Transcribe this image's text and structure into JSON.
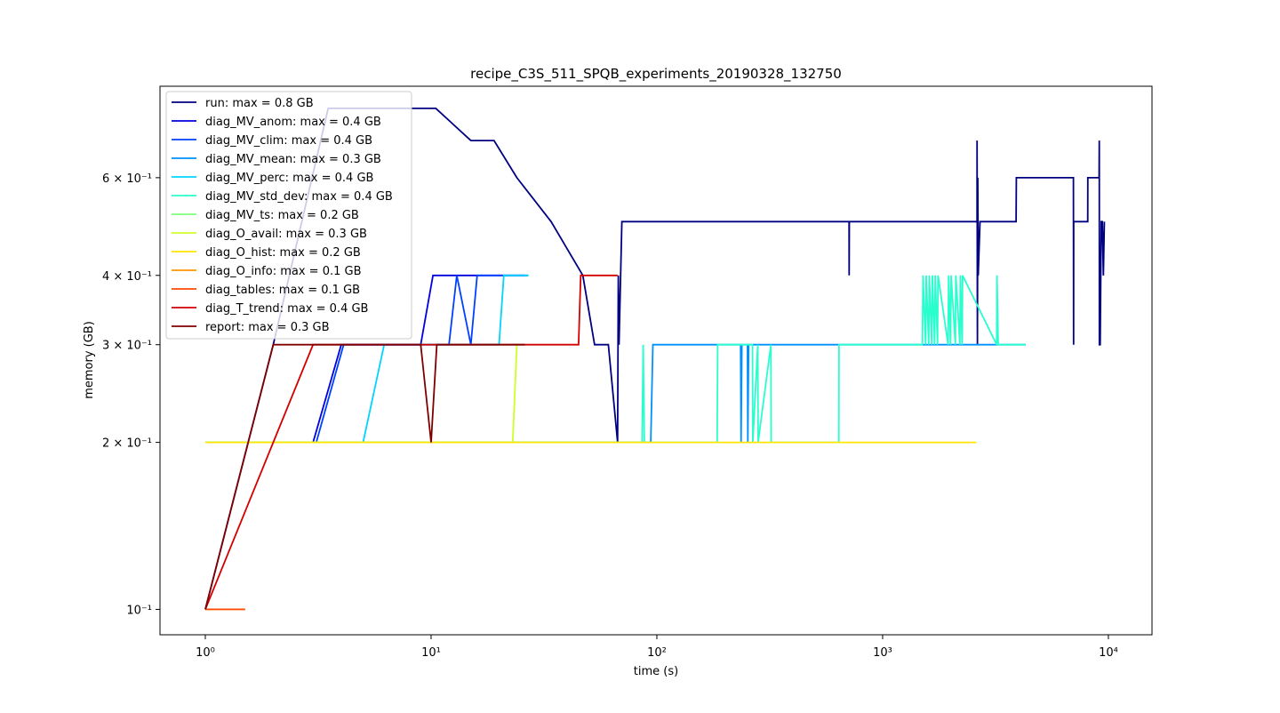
{
  "chart_data": {
    "type": "line",
    "title": "recipe_C3S_511_SPQB_experiments_20190328_132750",
    "x_label": "time (s)",
    "y_label": "memory (GB)",
    "xscale": "log",
    "yscale": "log",
    "legend": "upper left",
    "xlim": [
      0.63,
      15600
    ],
    "ylim": [
      0.09,
      0.877
    ],
    "xticks": [
      {
        "value": 1,
        "label": "10⁰"
      },
      {
        "value": 10,
        "label": "10¹"
      },
      {
        "value": 100,
        "label": "10²"
      },
      {
        "value": 1000,
        "label": "10³"
      },
      {
        "value": 10000,
        "label": "10⁴"
      }
    ],
    "yticks": [
      {
        "value": 0.1,
        "label": "10⁻¹"
      },
      {
        "value": 0.2,
        "label": "2 × 10⁻¹"
      },
      {
        "value": 0.3,
        "label": "3 × 10⁻¹"
      },
      {
        "value": 0.4,
        "label": "4 × 10⁻¹"
      },
      {
        "value": 0.6,
        "label": "6 × 10⁻¹"
      }
    ],
    "series": [
      {
        "name": "run: max = 0.8 GB",
        "color": "#000080",
        "x": [
          1,
          2,
          3.5,
          10.5,
          15,
          19,
          24,
          34,
          47,
          53,
          61,
          67,
          67.5,
          68,
          70,
          710,
          711,
          712,
          2620,
          2621,
          2630,
          2640,
          2650,
          2700,
          2710,
          3900,
          3910,
          7000,
          7010,
          7020,
          8100,
          8110,
          9100,
          9110,
          9120,
          9200,
          9300,
          9400,
          9500,
          9600
        ],
        "values": [
          0.1,
          0.3,
          0.8,
          0.8,
          0.7,
          0.7,
          0.6,
          0.5,
          0.4,
          0.3,
          0.3,
          0.2,
          0.4,
          0.3,
          0.5,
          0.5,
          0.4,
          0.5,
          0.5,
          0.7,
          0.3,
          0.6,
          0.4,
          0.5,
          0.5,
          0.5,
          0.6,
          0.6,
          0.3,
          0.5,
          0.5,
          0.6,
          0.6,
          0.7,
          0.3,
          0.3,
          0.5,
          0.5,
          0.4,
          0.5
        ]
      },
      {
        "name": "diag_MV_anom: max = 0.4 GB",
        "color": "#0000e0",
        "x": [
          3,
          4,
          9,
          10.2,
          26
        ],
        "values": [
          0.2,
          0.3,
          0.3,
          0.4,
          0.4
        ]
      },
      {
        "name": "diag_MV_clim: max = 0.4 GB",
        "color": "#0040ff",
        "x": [
          3.1,
          4.1,
          12,
          13,
          15,
          16,
          27
        ],
        "values": [
          0.2,
          0.3,
          0.3,
          0.4,
          0.3,
          0.4,
          0.4
        ]
      },
      {
        "name": "diag_MV_mean: max = 0.3 GB",
        "color": "#0090ff",
        "x": [
          1,
          94,
          96,
          235,
          236,
          238,
          252,
          253,
          255,
          4300
        ],
        "values": [
          0.2,
          0.2,
          0.3,
          0.3,
          0.2,
          0.3,
          0.3,
          0.2,
          0.3,
          0.3
        ]
      },
      {
        "name": "diag_MV_perc: max = 0.4 GB",
        "color": "#00d4ff",
        "x": [
          1,
          5,
          6.2,
          20,
          21,
          27
        ],
        "values": [
          0.2,
          0.2,
          0.3,
          0.3,
          0.4,
          0.4
        ]
      },
      {
        "name": "diag_MV_std_dev: max = 0.4 GB",
        "color": "#29ffce",
        "x": [
          1,
          86,
          87,
          88,
          185,
          186,
          188,
          265,
          266,
          280,
          281,
          320,
          321,
          640,
          641,
          1500,
          1510,
          1550,
          1560,
          1600,
          1610,
          1650,
          1660,
          1700,
          1710,
          1750,
          1760,
          1950,
          1960,
          2000,
          2010,
          2100,
          2110,
          2200,
          2210,
          2250,
          2260,
          3200,
          3210,
          3250,
          3260,
          4300
        ],
        "values": [
          0.2,
          0.2,
          0.3,
          0.2,
          0.2,
          0.3,
          0.3,
          0.3,
          0.2,
          0.3,
          0.2,
          0.3,
          0.2,
          0.2,
          0.3,
          0.3,
          0.4,
          0.3,
          0.4,
          0.3,
          0.4,
          0.3,
          0.4,
          0.3,
          0.4,
          0.3,
          0.4,
          0.3,
          0.4,
          0.3,
          0.4,
          0.3,
          0.4,
          0.3,
          0.4,
          0.3,
          0.4,
          0.3,
          0.4,
          0.3,
          0.3,
          0.3
        ]
      },
      {
        "name": "diag_MV_ts: max = 0.2 GB",
        "color": "#7dff7a",
        "x": [
          1,
          87
        ],
        "values": [
          0.2,
          0.2
        ]
      },
      {
        "name": "diag_O_avail: max = 0.3 GB",
        "color": "#ceff29",
        "x": [
          1,
          23,
          24,
          25
        ],
        "values": [
          0.2,
          0.2,
          0.3,
          0.3
        ]
      },
      {
        "name": "diag_O_hist: max = 0.2 GB",
        "color": "#ffe500",
        "x": [
          1,
          2600
        ],
        "values": [
          0.2,
          0.2
        ]
      },
      {
        "name": "diag_O_info: max = 0.1 GB",
        "color": "#ff9400",
        "x": [
          1,
          1.5
        ],
        "values": [
          0.1,
          0.1
        ]
      },
      {
        "name": "diag_tables: max = 0.1 GB",
        "color": "#ff4800",
        "x": [
          1,
          1.5
        ],
        "values": [
          0.1,
          0.1
        ]
      },
      {
        "name": "diag_T_trend: max = 0.4 GB",
        "color": "#d40000",
        "x": [
          1,
          2,
          3,
          9,
          45,
          46,
          67
        ],
        "values": [
          0.1,
          0.2,
          0.3,
          0.3,
          0.3,
          0.4,
          0.4
        ]
      },
      {
        "name": "report: max = 0.3 GB",
        "color": "#800000",
        "x": [
          1,
          2,
          9,
          10,
          10.6,
          26
        ],
        "values": [
          0.1,
          0.3,
          0.3,
          0.2,
          0.3,
          0.3
        ]
      }
    ]
  }
}
